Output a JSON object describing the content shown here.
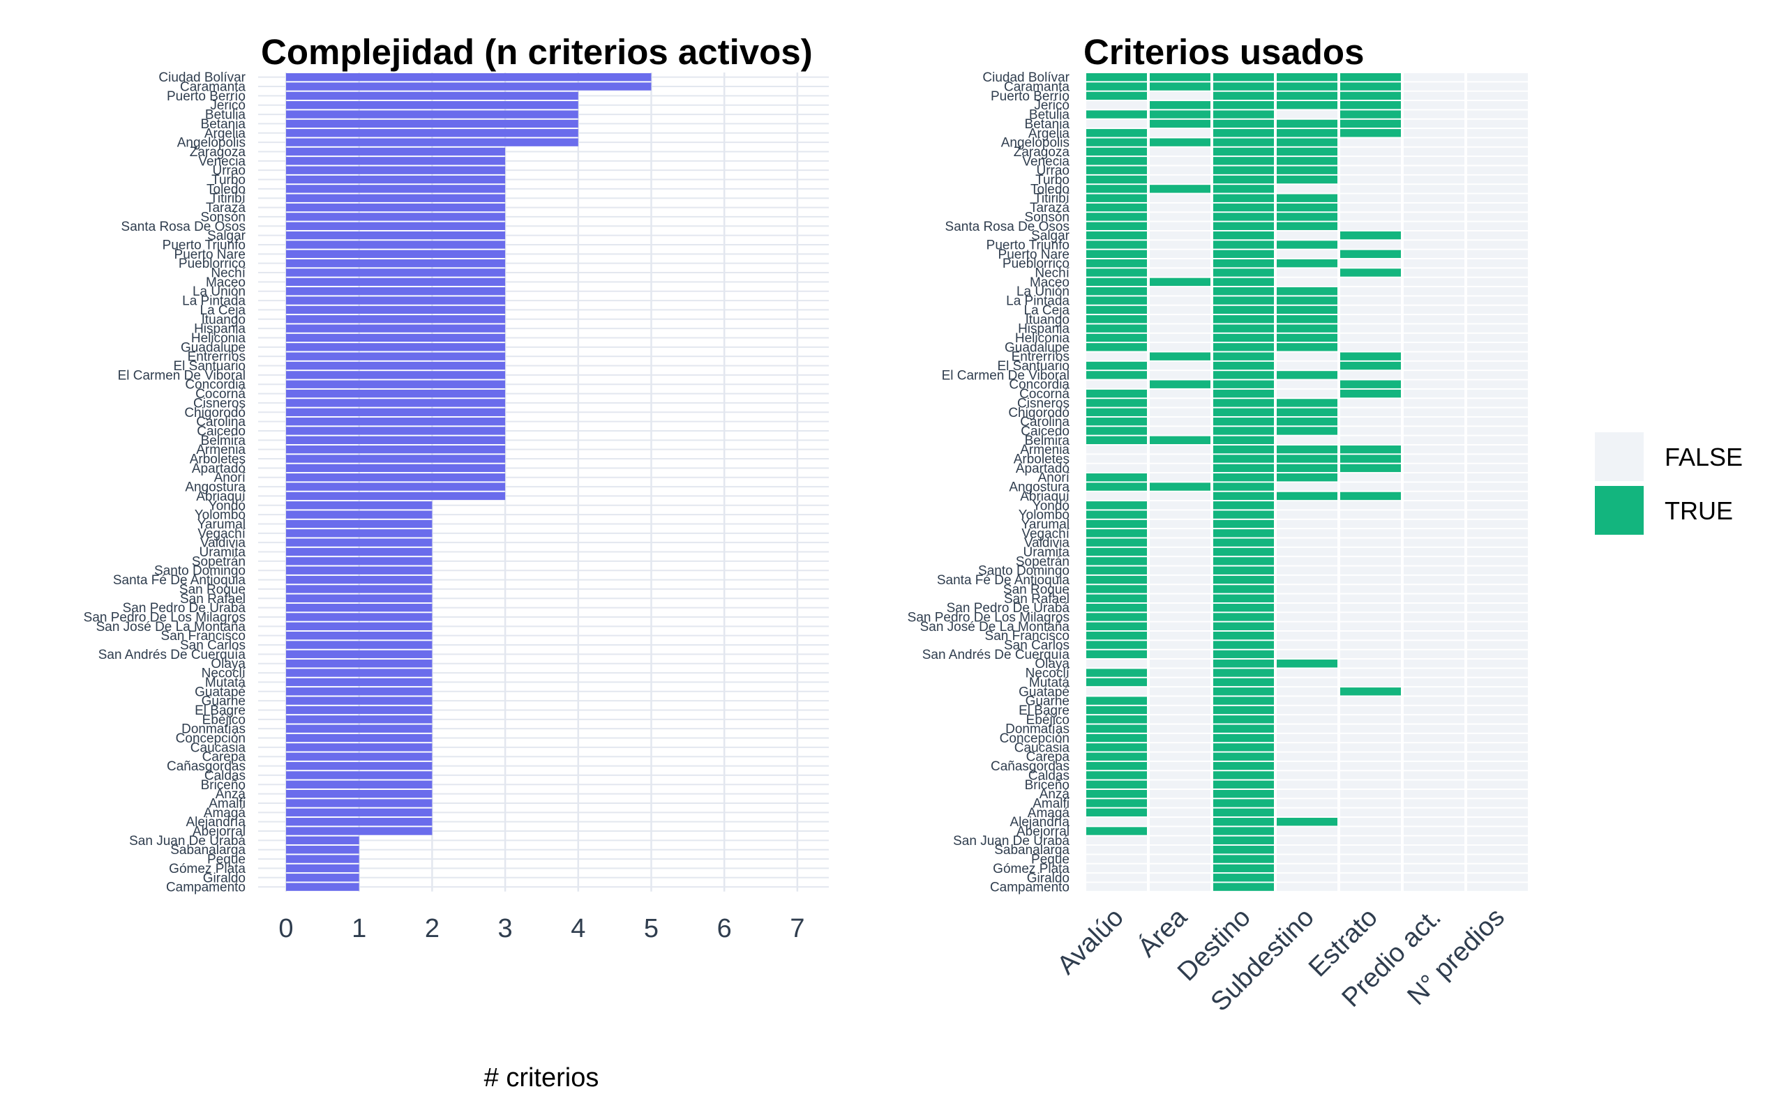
{
  "colors": {
    "bar": "#6a6cec",
    "true": "#13b57e",
    "false": "#f0f3f7",
    "grid": "#e3e7ef",
    "tick_text": "#2f3d4e"
  },
  "chart_data": [
    {
      "type": "bar",
      "orientation": "horizontal",
      "title": "Complejidad (n criterios activos)",
      "xlabel": "# criterios",
      "ylabel": "",
      "xlim": [
        0,
        7
      ],
      "xticks": [
        "0",
        "1",
        "2",
        "3",
        "4",
        "5",
        "6",
        "7"
      ],
      "grid": true,
      "categories": [
        "Ciudad Bolívar",
        "Caramanta",
        "Puerto Berrío",
        "Jericó",
        "Betulia",
        "Betania",
        "Argelia",
        "Angelópolis",
        "Zaragoza",
        "Venecia",
        "Urrao",
        "Turbo",
        "Toledo",
        "Titiribí",
        "Tarazá",
        "Sonsón",
        "Santa Rosa De Osos",
        "Salgar",
        "Puerto Triunfo",
        "Puerto Nare",
        "Pueblorrico",
        "Nechí",
        "Maceo",
        "La Unión",
        "La Pintada",
        "La Ceja",
        "Ituango",
        "Hispania",
        "Heliconia",
        "Guadalupe",
        "Entrerríos",
        "El Santuario",
        "El Carmen De Viboral",
        "Concordia",
        "Cocorná",
        "Cisneros",
        "Chigorodó",
        "Carolina",
        "Caicedo",
        "Belmira",
        "Armenia",
        "Arboletes",
        "Apartadó",
        "Anorí",
        "Angostura",
        "Abriaquí",
        "Yondó",
        "Yolombó",
        "Yarumal",
        "Vegachí",
        "Valdivia",
        "Uramita",
        "Sopetrán",
        "Santo Domingo",
        "Santa Fé De Antioquia",
        "San Roque",
        "San Rafael",
        "San Pedro De Urabá",
        "San Pedro De Los Milagros",
        "San José De La Montaña",
        "San Francisco",
        "San Carlos",
        "San Andrés De Cuerquía",
        "Olaya",
        "Necoclí",
        "Mutatá",
        "Guatapé",
        "Guarne",
        "El Bagre",
        "Ebéjico",
        "Donmatías",
        "Concepción",
        "Caucasia",
        "Carepa",
        "Cañasgordas",
        "Caldas",
        "Briceño",
        "Anzá",
        "Amalfi",
        "Amagá",
        "Alejandría",
        "Abejorral",
        "San Juan De Urabá",
        "Sabanalarga",
        "Peque",
        "Gómez Plata",
        "Giraldo",
        "Campamento"
      ],
      "values": [
        5,
        5,
        4,
        4,
        4,
        4,
        4,
        4,
        3,
        3,
        3,
        3,
        3,
        3,
        3,
        3,
        3,
        3,
        3,
        3,
        3,
        3,
        3,
        3,
        3,
        3,
        3,
        3,
        3,
        3,
        3,
        3,
        3,
        3,
        3,
        3,
        3,
        3,
        3,
        3,
        3,
        3,
        3,
        3,
        3,
        3,
        2,
        2,
        2,
        2,
        2,
        2,
        2,
        2,
        2,
        2,
        2,
        2,
        2,
        2,
        2,
        2,
        2,
        2,
        2,
        2,
        2,
        2,
        2,
        2,
        2,
        2,
        2,
        2,
        2,
        2,
        2,
        2,
        2,
        2,
        2,
        2,
        1,
        1,
        1,
        1,
        1,
        1
      ]
    },
    {
      "type": "heatmap",
      "title": "Criterios usados",
      "xlabel": "",
      "ylabel": "",
      "x": [
        "Avalúo",
        "Área",
        "Destino",
        "Subdestino",
        "Estrato",
        "Predio act.",
        "N° predios"
      ],
      "legend": {
        "position": "right",
        "entries": [
          "FALSE",
          "TRUE"
        ]
      },
      "rows": [
        [
          1,
          1,
          1,
          1,
          1,
          0,
          0
        ],
        [
          1,
          1,
          1,
          1,
          1,
          0,
          0
        ],
        [
          1,
          0,
          1,
          1,
          1,
          0,
          0
        ],
        [
          0,
          1,
          1,
          1,
          1,
          0,
          0
        ],
        [
          1,
          1,
          1,
          0,
          1,
          0,
          0
        ],
        [
          0,
          1,
          1,
          1,
          1,
          0,
          0
        ],
        [
          1,
          0,
          1,
          1,
          1,
          0,
          0
        ],
        [
          1,
          1,
          1,
          1,
          0,
          0,
          0
        ],
        [
          1,
          0,
          1,
          1,
          0,
          0,
          0
        ],
        [
          1,
          0,
          1,
          1,
          0,
          0,
          0
        ],
        [
          1,
          0,
          1,
          1,
          0,
          0,
          0
        ],
        [
          1,
          0,
          1,
          1,
          0,
          0,
          0
        ],
        [
          1,
          1,
          1,
          0,
          0,
          0,
          0
        ],
        [
          1,
          0,
          1,
          1,
          0,
          0,
          0
        ],
        [
          1,
          0,
          1,
          1,
          0,
          0,
          0
        ],
        [
          1,
          0,
          1,
          1,
          0,
          0,
          0
        ],
        [
          1,
          0,
          1,
          1,
          0,
          0,
          0
        ],
        [
          1,
          0,
          1,
          0,
          1,
          0,
          0
        ],
        [
          1,
          0,
          1,
          1,
          0,
          0,
          0
        ],
        [
          1,
          0,
          1,
          0,
          1,
          0,
          0
        ],
        [
          1,
          0,
          1,
          1,
          0,
          0,
          0
        ],
        [
          1,
          0,
          1,
          0,
          1,
          0,
          0
        ],
        [
          1,
          1,
          1,
          0,
          0,
          0,
          0
        ],
        [
          1,
          0,
          1,
          1,
          0,
          0,
          0
        ],
        [
          1,
          0,
          1,
          1,
          0,
          0,
          0
        ],
        [
          1,
          0,
          1,
          1,
          0,
          0,
          0
        ],
        [
          1,
          0,
          1,
          1,
          0,
          0,
          0
        ],
        [
          1,
          0,
          1,
          1,
          0,
          0,
          0
        ],
        [
          1,
          0,
          1,
          1,
          0,
          0,
          0
        ],
        [
          1,
          0,
          1,
          1,
          0,
          0,
          0
        ],
        [
          0,
          1,
          1,
          0,
          1,
          0,
          0
        ],
        [
          1,
          0,
          1,
          0,
          1,
          0,
          0
        ],
        [
          1,
          0,
          1,
          1,
          0,
          0,
          0
        ],
        [
          0,
          1,
          1,
          0,
          1,
          0,
          0
        ],
        [
          1,
          0,
          1,
          0,
          1,
          0,
          0
        ],
        [
          1,
          0,
          1,
          1,
          0,
          0,
          0
        ],
        [
          1,
          0,
          1,
          1,
          0,
          0,
          0
        ],
        [
          1,
          0,
          1,
          1,
          0,
          0,
          0
        ],
        [
          1,
          0,
          1,
          1,
          0,
          0,
          0
        ],
        [
          1,
          1,
          1,
          0,
          0,
          0,
          0
        ],
        [
          0,
          0,
          1,
          1,
          1,
          0,
          0
        ],
        [
          0,
          0,
          1,
          1,
          1,
          0,
          0
        ],
        [
          0,
          0,
          1,
          1,
          1,
          0,
          0
        ],
        [
          1,
          0,
          1,
          1,
          0,
          0,
          0
        ],
        [
          1,
          1,
          1,
          0,
          0,
          0,
          0
        ],
        [
          0,
          0,
          1,
          1,
          1,
          0,
          0
        ],
        [
          1,
          0,
          1,
          0,
          0,
          0,
          0
        ],
        [
          1,
          0,
          1,
          0,
          0,
          0,
          0
        ],
        [
          1,
          0,
          1,
          0,
          0,
          0,
          0
        ],
        [
          1,
          0,
          1,
          0,
          0,
          0,
          0
        ],
        [
          1,
          0,
          1,
          0,
          0,
          0,
          0
        ],
        [
          1,
          0,
          1,
          0,
          0,
          0,
          0
        ],
        [
          1,
          0,
          1,
          0,
          0,
          0,
          0
        ],
        [
          1,
          0,
          1,
          0,
          0,
          0,
          0
        ],
        [
          1,
          0,
          1,
          0,
          0,
          0,
          0
        ],
        [
          1,
          0,
          1,
          0,
          0,
          0,
          0
        ],
        [
          1,
          0,
          1,
          0,
          0,
          0,
          0
        ],
        [
          1,
          0,
          1,
          0,
          0,
          0,
          0
        ],
        [
          1,
          0,
          1,
          0,
          0,
          0,
          0
        ],
        [
          1,
          0,
          1,
          0,
          0,
          0,
          0
        ],
        [
          1,
          0,
          1,
          0,
          0,
          0,
          0
        ],
        [
          1,
          0,
          1,
          0,
          0,
          0,
          0
        ],
        [
          1,
          0,
          1,
          0,
          0,
          0,
          0
        ],
        [
          0,
          0,
          1,
          1,
          0,
          0,
          0
        ],
        [
          1,
          0,
          1,
          0,
          0,
          0,
          0
        ],
        [
          1,
          0,
          1,
          0,
          0,
          0,
          0
        ],
        [
          0,
          0,
          1,
          0,
          1,
          0,
          0
        ],
        [
          1,
          0,
          1,
          0,
          0,
          0,
          0
        ],
        [
          1,
          0,
          1,
          0,
          0,
          0,
          0
        ],
        [
          1,
          0,
          1,
          0,
          0,
          0,
          0
        ],
        [
          1,
          0,
          1,
          0,
          0,
          0,
          0
        ],
        [
          1,
          0,
          1,
          0,
          0,
          0,
          0
        ],
        [
          1,
          0,
          1,
          0,
          0,
          0,
          0
        ],
        [
          1,
          0,
          1,
          0,
          0,
          0,
          0
        ],
        [
          1,
          0,
          1,
          0,
          0,
          0,
          0
        ],
        [
          1,
          0,
          1,
          0,
          0,
          0,
          0
        ],
        [
          1,
          0,
          1,
          0,
          0,
          0,
          0
        ],
        [
          1,
          0,
          1,
          0,
          0,
          0,
          0
        ],
        [
          1,
          0,
          1,
          0,
          0,
          0,
          0
        ],
        [
          1,
          0,
          1,
          0,
          0,
          0,
          0
        ],
        [
          0,
          0,
          1,
          1,
          0,
          0,
          0
        ],
        [
          1,
          0,
          1,
          0,
          0,
          0,
          0
        ],
        [
          0,
          0,
          1,
          0,
          0,
          0,
          0
        ],
        [
          0,
          0,
          1,
          0,
          0,
          0,
          0
        ],
        [
          0,
          0,
          1,
          0,
          0,
          0,
          0
        ],
        [
          0,
          0,
          1,
          0,
          0,
          0,
          0
        ],
        [
          0,
          0,
          1,
          0,
          0,
          0,
          0
        ],
        [
          0,
          0,
          1,
          0,
          0,
          0,
          0
        ]
      ]
    }
  ]
}
